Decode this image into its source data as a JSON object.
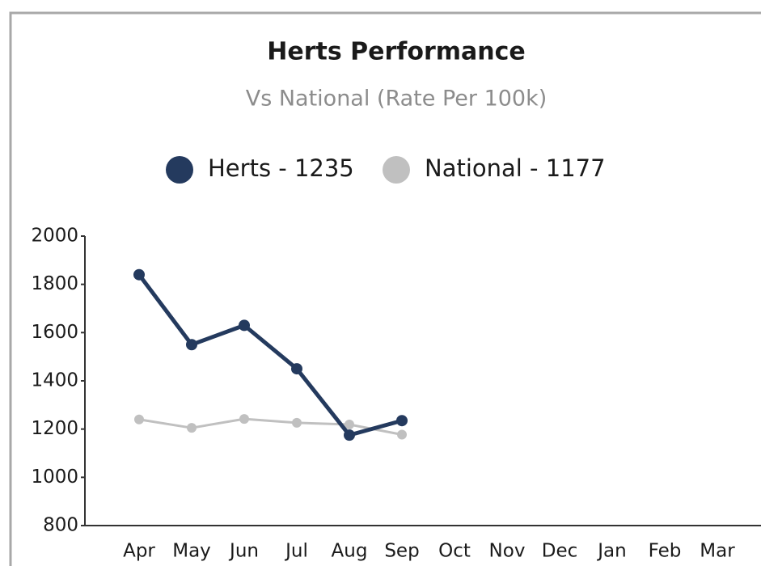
{
  "chart_data": {
    "type": "line",
    "title": "Herts Performance",
    "subtitle": "Vs National (Rate Per 100k)",
    "categories": [
      "Apr",
      "May",
      "Jun",
      "Jul",
      "Aug",
      "Sep",
      "Oct",
      "Nov",
      "Dec",
      "Jan",
      "Feb",
      "Mar"
    ],
    "series": [
      {
        "name": "Herts - 1235",
        "color": "#243a5e",
        "values": [
          1840,
          1550,
          1630,
          1450,
          1175,
          1235,
          null,
          null,
          null,
          null,
          null,
          null
        ]
      },
      {
        "name": "National - 1177",
        "color": "#c0c0c0",
        "values": [
          1240,
          1205,
          1242,
          1226,
          1219,
          1177,
          null,
          null,
          null,
          null,
          null,
          null
        ]
      }
    ],
    "ylim": [
      800,
      2000
    ],
    "yticks": [
      800,
      1000,
      1200,
      1400,
      1600,
      1800,
      2000
    ],
    "grid": false,
    "legend": "top"
  }
}
